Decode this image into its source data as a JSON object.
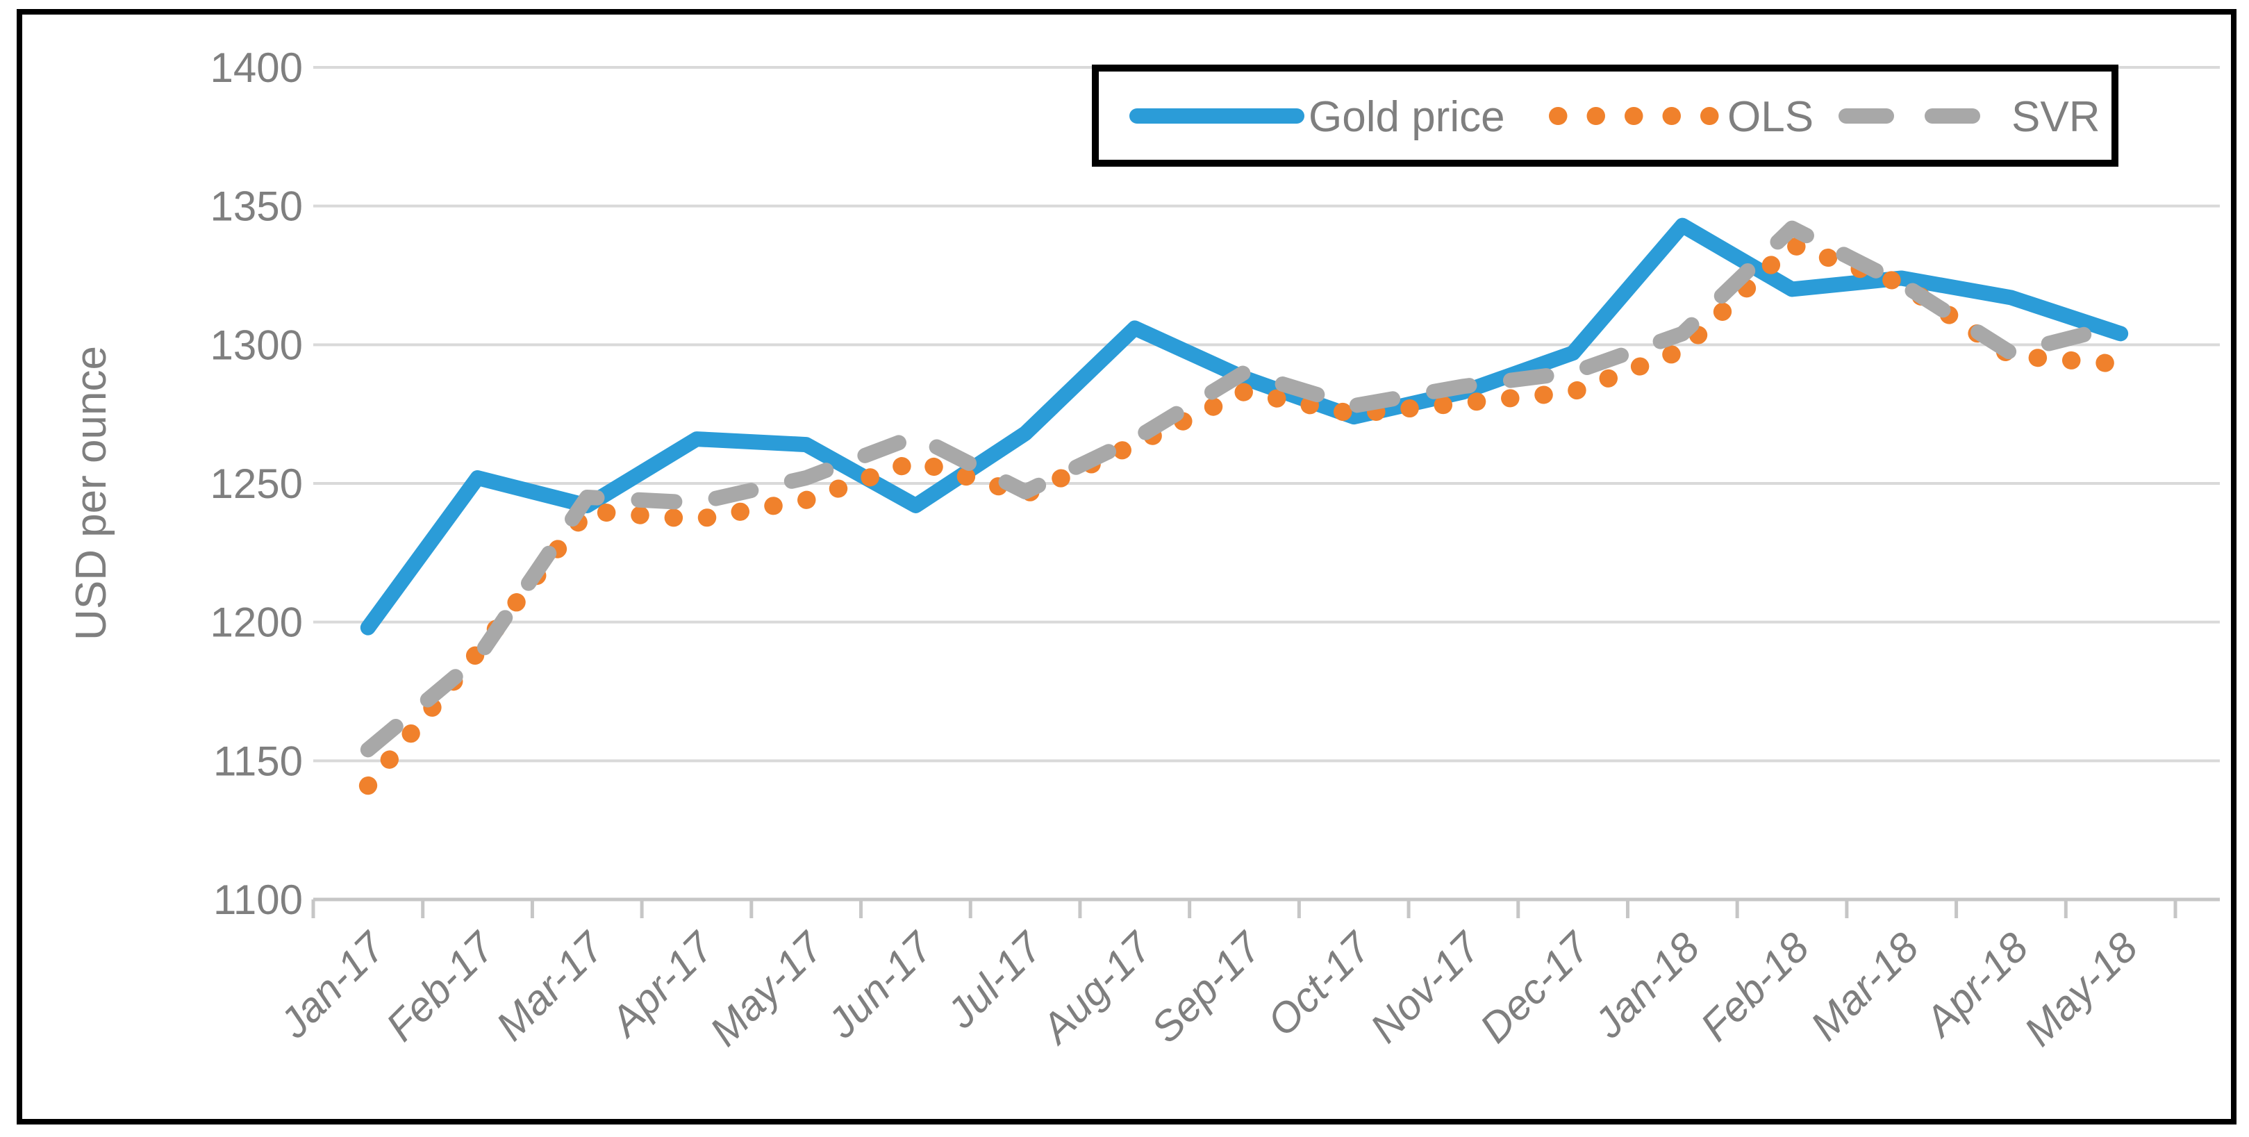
{
  "chart_data": {
    "type": "line",
    "title": "",
    "xlabel": "",
    "ylabel": "USD per ounce",
    "ylim": [
      1100,
      1400
    ],
    "yticks": [
      1100,
      1150,
      1200,
      1250,
      1300,
      1350,
      1400
    ],
    "grid": true,
    "legend_position": "top-right",
    "categories": [
      "Jan-17",
      "Feb-17",
      "Mar-17",
      "Apr-17",
      "May-17",
      "Jun-17",
      "Jul-17",
      "Aug-17",
      "Sep-17",
      "Oct-17",
      "Nov-17",
      "Dec-17",
      "Jan-18",
      "Feb-18",
      "Mar-18",
      "Apr-18",
      "May-18"
    ],
    "series": [
      {
        "name": "Gold price",
        "style": "solid",
        "color": "#2B9CD8",
        "values": [
          1198,
          1252,
          1242,
          1266,
          1264,
          1242,
          1268,
          1306,
          1288,
          1274,
          1283,
          1297,
          1343,
          1320,
          1324,
          1317,
          1304
        ]
      },
      {
        "name": "OLS",
        "style": "dotted",
        "color": "#F0812C",
        "values": [
          1141,
          1189,
          1240,
          1237,
          1244,
          1258,
          1246,
          1264,
          1283,
          1275,
          1279,
          1283,
          1298,
          1336,
          1322,
          1296,
          1293
        ]
      },
      {
        "name": "SVR",
        "style": "dashed",
        "color": "#A8A8A8",
        "values": [
          1154,
          1187,
          1245,
          1243,
          1252,
          1267,
          1247,
          1266,
          1290,
          1278,
          1285,
          1290,
          1304,
          1342,
          1322,
          1297,
          1307
        ]
      }
    ]
  },
  "colors": {
    "gridline": "#D9D9D9",
    "axis_line": "#C6C6C6",
    "tick_label": "#7F7F7F",
    "axis_title": "#7F7F7F",
    "legend_text": "#7F7F7F",
    "legend_border": "#000000",
    "frame_border": "#000000",
    "background": "#FFFFFF"
  }
}
